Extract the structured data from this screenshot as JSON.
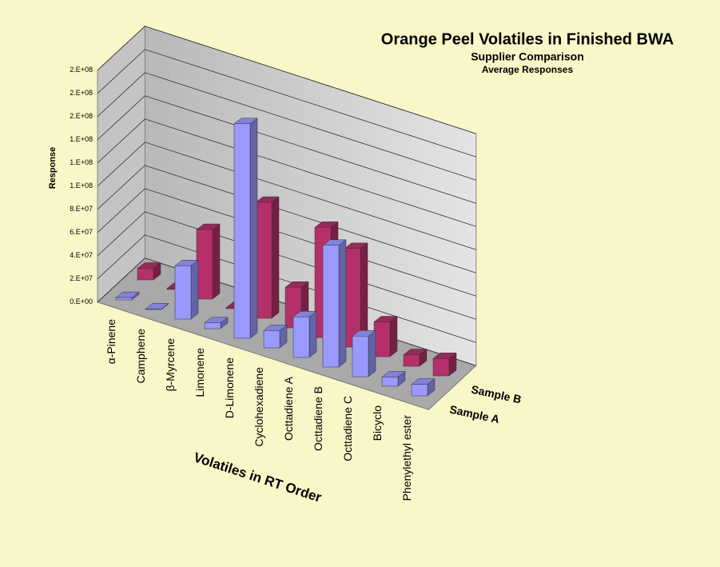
{
  "chart_data": {
    "type": "bar3d",
    "title": "Orange Peel Volatiles in Finished BWA",
    "subtitle": "Supplier Comparison",
    "note": "Average Responses",
    "y_label": "Response",
    "x_label": "Volatiles in RT Order",
    "categories": [
      "α-Pinene",
      "Camphene",
      "β-Myrcene",
      "Limonene",
      "D-Limonene",
      "Cyclohexadiene",
      "Octtadiene A",
      "Octtadiene B",
      "Octtadiene  C",
      "Bicyclo",
      "Phenylethyl ester"
    ],
    "series": [
      {
        "name": "Sample A",
        "color": "#9999ff",
        "values": [
          2000000,
          500000,
          46000000,
          5000000,
          185000000,
          15000000,
          35000000,
          105000000,
          35000000,
          8000000,
          10000000
        ]
      },
      {
        "name": "Sample B",
        "color": "#b5306a",
        "values": [
          10000000,
          1000000,
          60000000,
          1000000,
          100000000,
          35000000,
          95000000,
          85000000,
          30000000,
          10000000,
          15000000
        ]
      }
    ],
    "ylim": [
      0,
      200000000
    ],
    "yticks": [
      {
        "value": 0,
        "label": "0.E+00"
      },
      {
        "value": 20000000,
        "label": "2.E+07"
      },
      {
        "value": 40000000,
        "label": "4.E+07"
      },
      {
        "value": 60000000,
        "label": "6.E+07"
      },
      {
        "value": 80000000,
        "label": "8.E+07"
      },
      {
        "value": 100000000,
        "label": "1.E+08"
      },
      {
        "value": 120000000,
        "label": "1.E+08"
      },
      {
        "value": 140000000,
        "label": "1.E+08"
      },
      {
        "value": 160000000,
        "label": "2.E+08"
      },
      {
        "value": 180000000,
        "label": "2.E+08"
      },
      {
        "value": 200000000,
        "label": "2.E+08"
      }
    ],
    "grid": true
  }
}
